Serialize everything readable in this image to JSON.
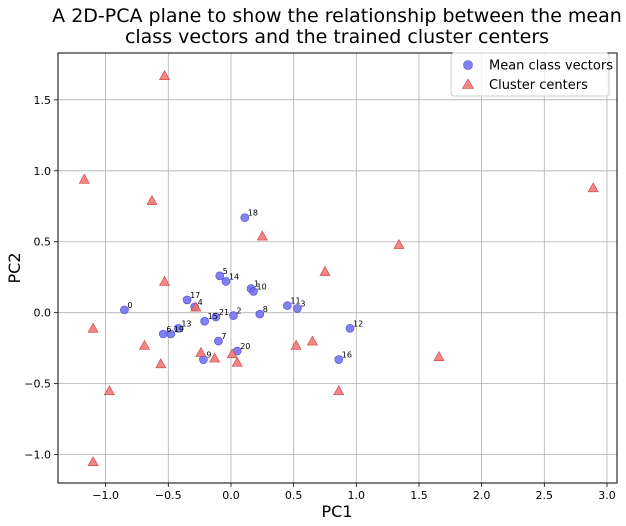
{
  "chart_data": {
    "type": "scatter",
    "title_line1": "A 2D-PCA plane to show the relationship between the mean",
    "title_line2": "class vectors and the trained cluster centers",
    "xlabel": "PC1",
    "ylabel": "PC2",
    "xlim": [
      -1.38,
      3.08
    ],
    "ylim": [
      -1.2,
      1.83
    ],
    "xticks": [
      -1.0,
      -0.5,
      0.0,
      0.5,
      1.0,
      1.5,
      2.0,
      2.5,
      3.0
    ],
    "xtick_labels": [
      "−1.0",
      "−0.5",
      "0.0",
      "0.5",
      "1.0",
      "1.5",
      "2.0",
      "2.5",
      "3.0"
    ],
    "yticks": [
      -1.0,
      -0.5,
      0.0,
      0.5,
      1.0,
      1.5
    ],
    "ytick_labels": [
      "−1.0",
      "−0.5",
      "0.0",
      "0.5",
      "1.0",
      "1.5"
    ],
    "grid": true,
    "legend_position": "top-right",
    "series": [
      {
        "name": "Mean class vectors",
        "marker": "circle",
        "color": "#6b6bf0",
        "points": [
          {
            "label": "0",
            "x": -0.85,
            "y": 0.02
          },
          {
            "label": "1",
            "x": 0.16,
            "y": 0.17
          },
          {
            "label": "2",
            "x": 0.02,
            "y": -0.02
          },
          {
            "label": "3",
            "x": 0.53,
            "y": 0.03
          },
          {
            "label": "4",
            "x": -0.29,
            "y": 0.04
          },
          {
            "label": "5",
            "x": -0.09,
            "y": 0.26
          },
          {
            "label": "6",
            "x": -0.54,
            "y": -0.15
          },
          {
            "label": "7",
            "x": -0.1,
            "y": -0.2
          },
          {
            "label": "8",
            "x": 0.23,
            "y": -0.01
          },
          {
            "label": "9",
            "x": -0.22,
            "y": -0.33
          },
          {
            "label": "10",
            "x": 0.18,
            "y": 0.15
          },
          {
            "label": "11",
            "x": 0.45,
            "y": 0.05
          },
          {
            "label": "12",
            "x": 0.95,
            "y": -0.11
          },
          {
            "label": "13",
            "x": -0.42,
            "y": -0.11
          },
          {
            "label": "14",
            "x": -0.04,
            "y": 0.22
          },
          {
            "label": "15",
            "x": -0.21,
            "y": -0.06
          },
          {
            "label": "16",
            "x": 0.86,
            "y": -0.33
          },
          {
            "label": "17",
            "x": -0.35,
            "y": 0.09
          },
          {
            "label": "18",
            "x": 0.11,
            "y": 0.67
          },
          {
            "label": "19",
            "x": -0.48,
            "y": -0.15
          },
          {
            "label": "20",
            "x": 0.05,
            "y": -0.27
          },
          {
            "label": "21",
            "x": -0.12,
            "y": -0.03
          }
        ]
      },
      {
        "name": "Cluster centers",
        "marker": "triangle",
        "color": "#f07070",
        "points": [
          {
            "x": -0.53,
            "y": 1.67
          },
          {
            "x": -1.17,
            "y": 0.94
          },
          {
            "x": -0.63,
            "y": 0.79
          },
          {
            "x": 0.25,
            "y": 0.54
          },
          {
            "x": 1.34,
            "y": 0.48
          },
          {
            "x": 0.75,
            "y": 0.29
          },
          {
            "x": -0.53,
            "y": 0.22
          },
          {
            "x": -0.28,
            "y": 0.04
          },
          {
            "x": 2.89,
            "y": 0.88
          },
          {
            "x": -1.1,
            "y": -0.11
          },
          {
            "x": -0.69,
            "y": -0.23
          },
          {
            "x": -0.24,
            "y": -0.28
          },
          {
            "x": -0.13,
            "y": -0.32
          },
          {
            "x": 0.01,
            "y": -0.29
          },
          {
            "x": 0.05,
            "y": -0.35
          },
          {
            "x": -0.56,
            "y": -0.36
          },
          {
            "x": 0.52,
            "y": -0.23
          },
          {
            "x": 0.65,
            "y": -0.2
          },
          {
            "x": 1.66,
            "y": -0.31
          },
          {
            "x": -0.97,
            "y": -0.55
          },
          {
            "x": 0.86,
            "y": -0.55
          },
          {
            "x": -1.1,
            "y": -1.05
          }
        ]
      }
    ]
  }
}
